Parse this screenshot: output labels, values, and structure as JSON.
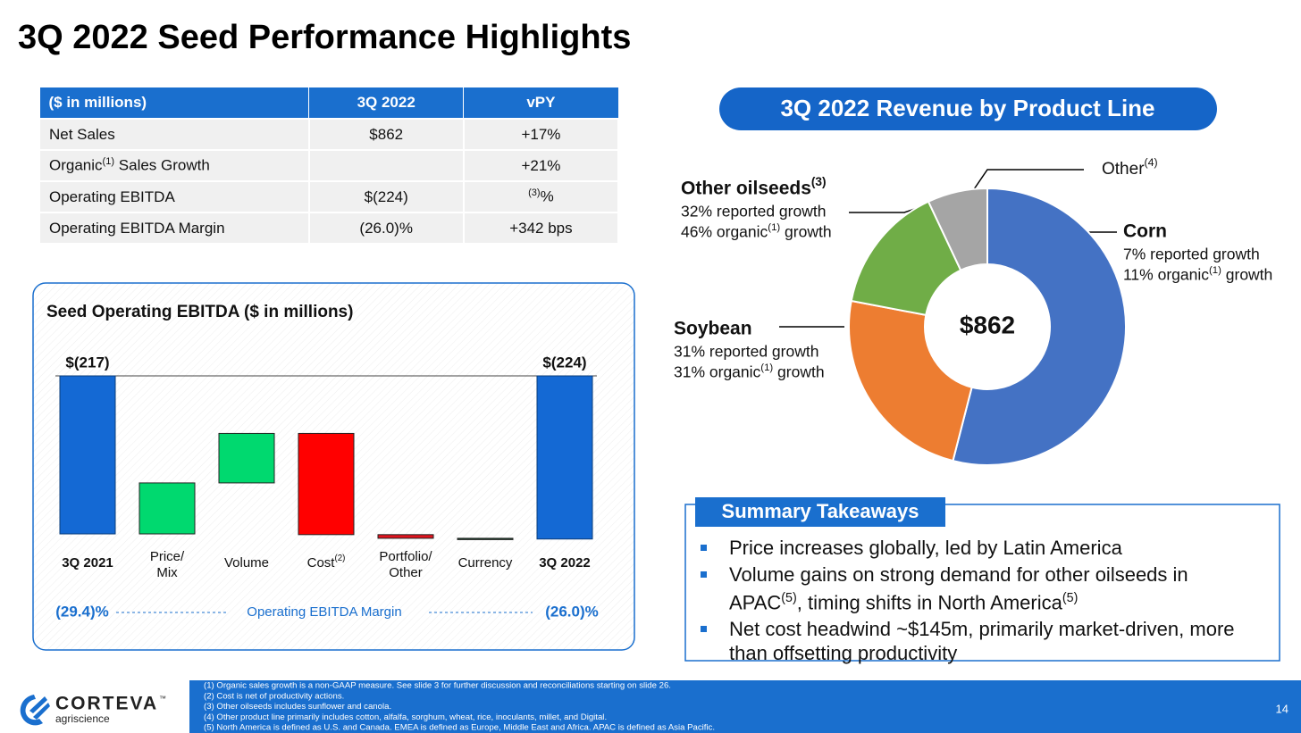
{
  "title": "3Q 2022 Seed Performance Highlights",
  "table": {
    "header": [
      "($ in millions)",
      "3Q 2022",
      "vPY"
    ],
    "rows": [
      [
        "Net Sales",
        "$862",
        "+17%"
      ],
      [
        "Organic(1) Sales Growth",
        null,
        "+21%"
      ],
      [
        "Operating EBITDA",
        "$(224)",
        "(3)%"
      ],
      [
        "Operating EBITDA Margin",
        "(26.0)%",
        "+342 bps"
      ]
    ]
  },
  "chart_data": [
    {
      "type": "waterfall",
      "title": "Seed Operating EBITDA ($ in millions)",
      "categories": [
        "3Q 2021",
        "Price/Mix",
        "Volume",
        "Cost(2)",
        "Portfolio/Other",
        "Currency",
        "3Q 2022"
      ],
      "measure": [
        "absolute",
        "relative",
        "relative",
        "relative",
        "relative",
        "relative",
        "absolute"
      ],
      "values": [
        -217,
        70,
        68,
        -139,
        -5,
        -1,
        -224
      ],
      "value_labels": [
        "$(217)",
        null,
        null,
        null,
        null,
        null,
        "$(224)"
      ],
      "colors": [
        "#1469d4",
        "#00d96f",
        "#00d96f",
        "#ff0000",
        "#e0141e",
        "#1a4d2e",
        "#1469d4"
      ],
      "annotations": [
        "(29.4)%",
        "Operating EBITDA Margin",
        "(26.0)%"
      ]
    },
    {
      "type": "donut",
      "title": "3Q 2022 Revenue by Product Line",
      "center_label": "$862",
      "categories": [
        "Corn",
        "Soybean",
        "Other oilseeds(3)",
        "Other(4)"
      ],
      "values": [
        54,
        24,
        15,
        7
      ],
      "colors": [
        "#4472c4",
        "#ed7d31",
        "#70ad47",
        "#a5a5a5"
      ],
      "notes": [
        [
          "7% reported growth",
          "11% organic(1) growth"
        ],
        [
          "31% reported growth",
          "31% organic(1) growth"
        ],
        [
          "32% reported growth",
          "46% organic(1) growth"
        ],
        null
      ]
    }
  ],
  "summary": {
    "title": "Summary Takeaways",
    "bullets": [
      "Price increases globally, led by Latin America",
      "Volume gains on strong demand for other oilseeds in APAC(5), timing shifts in North America(5)",
      "Net cost headwind ~$145m, primarily market-driven, more than offsetting productivity"
    ]
  },
  "footer": {
    "logo": "CORTEVA",
    "logo_sub": "agriscience",
    "trademark": "™",
    "footnotes": [
      "(1) Organic sales growth is a non-GAAP measure. See slide 3 for further discussion and reconciliations starting on slide 26.",
      "(2) Cost is net of productivity actions.",
      "(3) Other oilseeds includes sunflower and canola.",
      "(4) Other product line primarily includes cotton, alfalfa, sorghum, wheat, rice, inoculants, millet, and Digital.",
      "(5) North America is defined as U.S. and Canada. EMEA is defined as Europe, Middle East and Africa. APAC is defined as Asia Pacific."
    ],
    "page": "14"
  }
}
